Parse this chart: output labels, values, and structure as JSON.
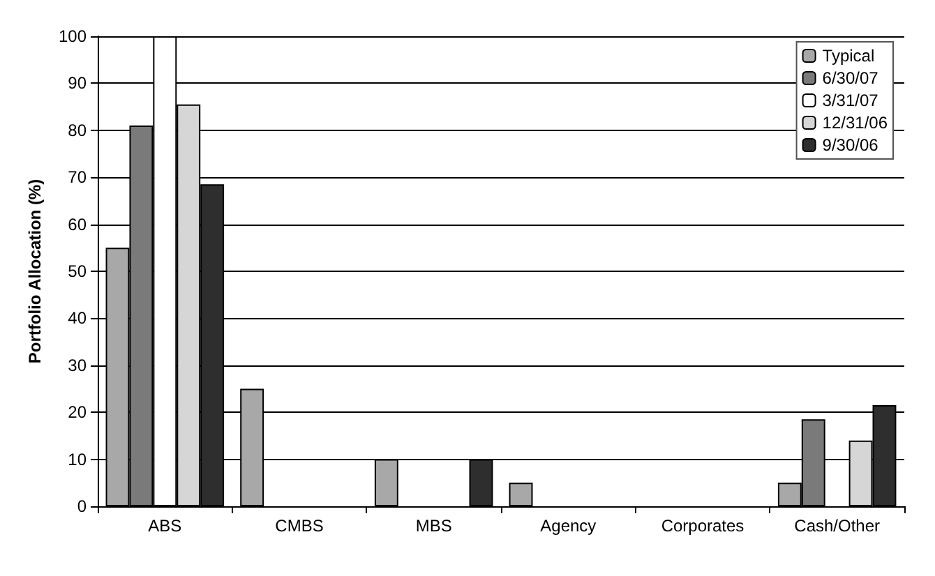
{
  "chart_data": {
    "type": "bar",
    "ylabel": "Portfolio Allocation (%)",
    "categories": [
      "ABS",
      "CMBS",
      "MBS",
      "Agency",
      "Corporates",
      "Cash/Other"
    ],
    "series": [
      {
        "name": "Typical",
        "color": "#a8a8a8",
        "values": [
          55,
          25,
          10,
          5,
          0,
          5
        ]
      },
      {
        "name": "6/30/07",
        "color": "#7a7a7a",
        "values": [
          81,
          0,
          0,
          0,
          0,
          18.5
        ]
      },
      {
        "name": "3/31/07",
        "color": "#ffffff",
        "values": [
          100,
          0,
          0,
          0,
          0,
          0
        ]
      },
      {
        "name": "12/31/06",
        "color": "#d6d6d6",
        "values": [
          85.5,
          0,
          0,
          0,
          0,
          14
        ]
      },
      {
        "name": "9/30/06",
        "color": "#2e2e2e",
        "values": [
          68.5,
          0,
          10,
          0,
          0,
          21.5
        ]
      }
    ],
    "ylim": [
      0,
      100
    ],
    "yticks": [
      0,
      10,
      20,
      30,
      40,
      50,
      60,
      70,
      80,
      90,
      100
    ],
    "grid": "y",
    "legend": "top right"
  }
}
